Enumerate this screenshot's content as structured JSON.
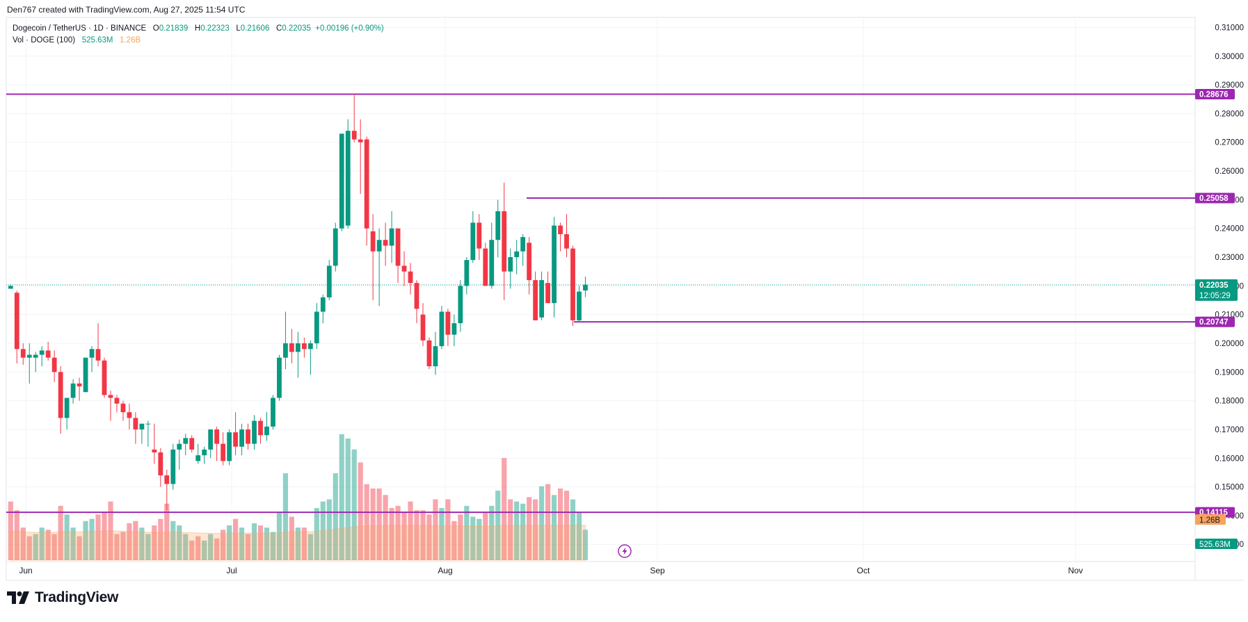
{
  "caption": "Den767 created with TradingView.com, Aug 27, 2025 11:54 UTC",
  "legend": {
    "symbol": "Dogecoin / TetherUS · 1D · BINANCE",
    "o_label": "O",
    "o_value": "0.21839",
    "h_label": "H",
    "h_value": "0.22323",
    "l_label": "L",
    "l_value": "0.21606",
    "c_label": "C",
    "c_value": "0.22035",
    "change": "+0.00196 (+0.90%)",
    "vol_label": "Vol · DOGE (100)",
    "vol_value": "525.63M",
    "vol_ma_value": "1.26B"
  },
  "brand": "TradingView",
  "colors": {
    "up": "#089981",
    "down": "#f23645",
    "level": "#9c27b0",
    "vol_ma": "#f7a35c",
    "price_tag": "#089981"
  },
  "chart_data": {
    "type": "candlestick",
    "symbol": "DOGE/USDT",
    "interval": "1D",
    "y_ticks": [
      "0.31000",
      "0.30000",
      "0.29000",
      "0.28000",
      "0.27000",
      "0.26000",
      "0.25000",
      "0.24000",
      "0.23000",
      "0.22000",
      "0.21000",
      "0.20000",
      "0.19000",
      "0.18000",
      "0.17000",
      "0.16000",
      "0.15000",
      "0.14000",
      "0.13000"
    ],
    "ylim": [
      0.124,
      0.3135
    ],
    "x_labels": [
      "Jun",
      "Jul",
      "Aug",
      "Sep",
      "Oct",
      "Nov"
    ],
    "current_price": "0.22035",
    "countdown": "12:05:29",
    "levels": [
      "0.28676",
      "0.25058",
      "0.20747",
      "0.14115"
    ],
    "volume_labels": [
      "1.26B",
      "525.63M"
    ],
    "candles": [
      [
        0.219,
        0.2205,
        0.219,
        0.22
      ],
      [
        0.2176,
        0.2183,
        0.193,
        0.198
      ],
      [
        0.198,
        0.2,
        0.1925,
        0.195
      ],
      [
        0.195,
        0.2,
        0.186,
        0.196
      ],
      [
        0.195,
        0.197,
        0.19,
        0.196
      ],
      [
        0.196,
        0.199,
        0.192,
        0.1975
      ],
      [
        0.1975,
        0.2005,
        0.194,
        0.195
      ],
      [
        0.195,
        0.1975,
        0.1865,
        0.19
      ],
      [
        0.19,
        0.192,
        0.1685,
        0.174
      ],
      [
        0.174,
        0.181,
        0.17,
        0.181
      ],
      [
        0.181,
        0.1875,
        0.179,
        0.186
      ],
      [
        0.186,
        0.188,
        0.18,
        0.185
      ],
      [
        0.183,
        0.195,
        0.183,
        0.195
      ],
      [
        0.195,
        0.199,
        0.19,
        0.198
      ],
      [
        0.198,
        0.207,
        0.192,
        0.194
      ],
      [
        0.194,
        0.195,
        0.181,
        0.182
      ],
      [
        0.182,
        0.1835,
        0.173,
        0.181
      ],
      [
        0.181,
        0.182,
        0.176,
        0.179
      ],
      [
        0.179,
        0.18,
        0.173,
        0.176
      ],
      [
        0.176,
        0.179,
        0.17,
        0.174
      ],
      [
        0.174,
        0.176,
        0.165,
        0.17
      ],
      [
        0.17,
        0.172,
        0.165,
        0.172
      ],
      [
        0.172,
        0.173,
        0.164,
        0.172
      ],
      [
        0.163,
        0.172,
        0.158,
        0.162
      ],
      [
        0.162,
        0.1635,
        0.15,
        0.154
      ],
      [
        0.154,
        0.156,
        0.142,
        0.151
      ],
      [
        0.151,
        0.165,
        0.149,
        0.163
      ],
      [
        0.163,
        0.1665,
        0.156,
        0.165
      ],
      [
        0.165,
        0.1685,
        0.161,
        0.167
      ],
      [
        0.167,
        0.168,
        0.162,
        0.163
      ],
      [
        0.159,
        0.165,
        0.158,
        0.161
      ],
      [
        0.161,
        0.164,
        0.158,
        0.163
      ],
      [
        0.163,
        0.17,
        0.16,
        0.17
      ],
      [
        0.17,
        0.171,
        0.159,
        0.165
      ],
      [
        0.165,
        0.169,
        0.1575,
        0.159
      ],
      [
        0.159,
        0.17,
        0.1575,
        0.169
      ],
      [
        0.169,
        0.176,
        0.161,
        0.164
      ],
      [
        0.164,
        0.172,
        0.161,
        0.17
      ],
      [
        0.17,
        0.172,
        0.163,
        0.165
      ],
      [
        0.165,
        0.175,
        0.163,
        0.173
      ],
      [
        0.173,
        0.174,
        0.165,
        0.168
      ],
      [
        0.168,
        0.176,
        0.166,
        0.171
      ],
      [
        0.171,
        0.182,
        0.17,
        0.181
      ],
      [
        0.181,
        0.196,
        0.18,
        0.195
      ],
      [
        0.195,
        0.211,
        0.191,
        0.2
      ],
      [
        0.2,
        0.205,
        0.193,
        0.197
      ],
      [
        0.197,
        0.204,
        0.188,
        0.2
      ],
      [
        0.2,
        0.202,
        0.195,
        0.198
      ],
      [
        0.198,
        0.201,
        0.189,
        0.2
      ],
      [
        0.2,
        0.214,
        0.198,
        0.211
      ],
      [
        0.211,
        0.217,
        0.207,
        0.216
      ],
      [
        0.216,
        0.229,
        0.215,
        0.227
      ],
      [
        0.227,
        0.242,
        0.225,
        0.24
      ],
      [
        0.24,
        0.273,
        0.239,
        0.273
      ],
      [
        0.241,
        0.278,
        0.24,
        0.274
      ],
      [
        0.274,
        0.287,
        0.27,
        0.271
      ],
      [
        0.271,
        0.278,
        0.252,
        0.27
      ],
      [
        0.271,
        0.272,
        0.234,
        0.24
      ],
      [
        0.239,
        0.245,
        0.215,
        0.232
      ],
      [
        0.232,
        0.24,
        0.213,
        0.236
      ],
      [
        0.236,
        0.242,
        0.227,
        0.234
      ],
      [
        0.234,
        0.246,
        0.228,
        0.24
      ],
      [
        0.24,
        0.24,
        0.221,
        0.227
      ],
      [
        0.227,
        0.232,
        0.22,
        0.225
      ],
      [
        0.225,
        0.228,
        0.217,
        0.221
      ],
      [
        0.221,
        0.222,
        0.207,
        0.212
      ],
      [
        0.21,
        0.214,
        0.199,
        0.201
      ],
      [
        0.201,
        0.202,
        0.191,
        0.192
      ],
      [
        0.192,
        0.204,
        0.189,
        0.199
      ],
      [
        0.199,
        0.213,
        0.198,
        0.211
      ],
      [
        0.211,
        0.212,
        0.199,
        0.203
      ],
      [
        0.203,
        0.21,
        0.199,
        0.207
      ],
      [
        0.207,
        0.222,
        0.204,
        0.22
      ],
      [
        0.22,
        0.23,
        0.217,
        0.229
      ],
      [
        0.229,
        0.246,
        0.228,
        0.242
      ],
      [
        0.242,
        0.245,
        0.229,
        0.233
      ],
      [
        0.233,
        0.235,
        0.22,
        0.22
      ],
      [
        0.22,
        0.242,
        0.219,
        0.236
      ],
      [
        0.236,
        0.25,
        0.23,
        0.246
      ],
      [
        0.246,
        0.256,
        0.215,
        0.225
      ],
      [
        0.225,
        0.233,
        0.219,
        0.23
      ],
      [
        0.23,
        0.236,
        0.224,
        0.232
      ],
      [
        0.232,
        0.238,
        0.227,
        0.237
      ],
      [
        0.235,
        0.237,
        0.217,
        0.222
      ],
      [
        0.222,
        0.225,
        0.208,
        0.208
      ],
      [
        0.209,
        0.225,
        0.208,
        0.222
      ],
      [
        0.221,
        0.225,
        0.214,
        0.214
      ],
      [
        0.214,
        0.244,
        0.209,
        0.241
      ],
      [
        0.241,
        0.242,
        0.232,
        0.238
      ],
      [
        0.238,
        0.245,
        0.23,
        0.233
      ],
      [
        0.233,
        0.234,
        0.206,
        0.208
      ],
      [
        0.208,
        0.22,
        0.2075,
        0.218
      ],
      [
        0.2184,
        0.2232,
        0.2161,
        0.2204
      ]
    ],
    "volumes": [
      [
        0.27,
        "down"
      ],
      [
        0.23,
        "down"
      ],
      [
        0.15,
        "down"
      ],
      [
        0.11,
        "down"
      ],
      [
        0.12,
        "up"
      ],
      [
        0.15,
        "up"
      ],
      [
        0.14,
        "down"
      ],
      [
        0.12,
        "down"
      ],
      [
        0.25,
        "down"
      ],
      [
        0.21,
        "up"
      ],
      [
        0.15,
        "up"
      ],
      [
        0.11,
        "down"
      ],
      [
        0.18,
        "up"
      ],
      [
        0.19,
        "up"
      ],
      [
        0.21,
        "down"
      ],
      [
        0.22,
        "down"
      ],
      [
        0.27,
        "down"
      ],
      [
        0.12,
        "down"
      ],
      [
        0.13,
        "down"
      ],
      [
        0.17,
        "down"
      ],
      [
        0.18,
        "down"
      ],
      [
        0.15,
        "up"
      ],
      [
        0.12,
        "up"
      ],
      [
        0.16,
        "down"
      ],
      [
        0.19,
        "down"
      ],
      [
        0.26,
        "down"
      ],
      [
        0.18,
        "up"
      ],
      [
        0.16,
        "up"
      ],
      [
        0.12,
        "up"
      ],
      [
        0.09,
        "down"
      ],
      [
        0.11,
        "down"
      ],
      [
        0.09,
        "up"
      ],
      [
        0.12,
        "up"
      ],
      [
        0.1,
        "down"
      ],
      [
        0.14,
        "down"
      ],
      [
        0.16,
        "up"
      ],
      [
        0.19,
        "down"
      ],
      [
        0.15,
        "up"
      ],
      [
        0.12,
        "down"
      ],
      [
        0.17,
        "up"
      ],
      [
        0.16,
        "down"
      ],
      [
        0.15,
        "up"
      ],
      [
        0.13,
        "up"
      ],
      [
        0.22,
        "up"
      ],
      [
        0.4,
        "up"
      ],
      [
        0.2,
        "down"
      ],
      [
        0.15,
        "up"
      ],
      [
        0.15,
        "down"
      ],
      [
        0.12,
        "up"
      ],
      [
        0.24,
        "up"
      ],
      [
        0.27,
        "up"
      ],
      [
        0.28,
        "up"
      ],
      [
        0.4,
        "up"
      ],
      [
        0.58,
        "up"
      ],
      [
        0.56,
        "up"
      ],
      [
        0.51,
        "up"
      ],
      [
        0.45,
        "down"
      ],
      [
        0.35,
        "down"
      ],
      [
        0.33,
        "down"
      ],
      [
        0.33,
        "down"
      ],
      [
        0.3,
        "down"
      ],
      [
        0.24,
        "down"
      ],
      [
        0.25,
        "down"
      ],
      [
        0.22,
        "down"
      ],
      [
        0.27,
        "down"
      ],
      [
        0.23,
        "down"
      ],
      [
        0.23,
        "down"
      ],
      [
        0.21,
        "down"
      ],
      [
        0.28,
        "down"
      ],
      [
        0.24,
        "up"
      ],
      [
        0.28,
        "down"
      ],
      [
        0.18,
        "down"
      ],
      [
        0.21,
        "down"
      ],
      [
        0.25,
        "up"
      ],
      [
        0.2,
        "up"
      ],
      [
        0.19,
        "up"
      ],
      [
        0.22,
        "down"
      ],
      [
        0.25,
        "up"
      ],
      [
        0.32,
        "up"
      ],
      [
        0.47,
        "down"
      ],
      [
        0.28,
        "down"
      ],
      [
        0.27,
        "up"
      ],
      [
        0.26,
        "up"
      ],
      [
        0.29,
        "down"
      ],
      [
        0.28,
        "down"
      ],
      [
        0.34,
        "up"
      ],
      [
        0.35,
        "down"
      ],
      [
        0.3,
        "up"
      ],
      [
        0.33,
        "down"
      ],
      [
        0.32,
        "down"
      ],
      [
        0.28,
        "up"
      ],
      [
        0.22,
        "up"
      ],
      [
        0.14,
        "up"
      ]
    ],
    "volume_ma": [
      0.132,
      0.133,
      0.131,
      0.129,
      0.128,
      0.127,
      0.128,
      0.128,
      0.13,
      0.131,
      0.131,
      0.13,
      0.131,
      0.132,
      0.133,
      0.134,
      0.135,
      0.134,
      0.133,
      0.132,
      0.131,
      0.13,
      0.129,
      0.128,
      0.128,
      0.129,
      0.129,
      0.128,
      0.127,
      0.126,
      0.125,
      0.124,
      0.124,
      0.123,
      0.123,
      0.124,
      0.124,
      0.124,
      0.124,
      0.124,
      0.124,
      0.124,
      0.124,
      0.125,
      0.129,
      0.13,
      0.131,
      0.131,
      0.131,
      0.133,
      0.135,
      0.138,
      0.141,
      0.146,
      0.15,
      0.153,
      0.155,
      0.157,
      0.158,
      0.159,
      0.159,
      0.159,
      0.159,
      0.159,
      0.159,
      0.159,
      0.159,
      0.159,
      0.159,
      0.158,
      0.158,
      0.157,
      0.157,
      0.156,
      0.156,
      0.156,
      0.156,
      0.156,
      0.157,
      0.159,
      0.159,
      0.159,
      0.159,
      0.16,
      0.16,
      0.16,
      0.16,
      0.16,
      0.16,
      0.161,
      0.161,
      0.161,
      0.16
    ],
    "volume_scale_max": 0.64
  }
}
